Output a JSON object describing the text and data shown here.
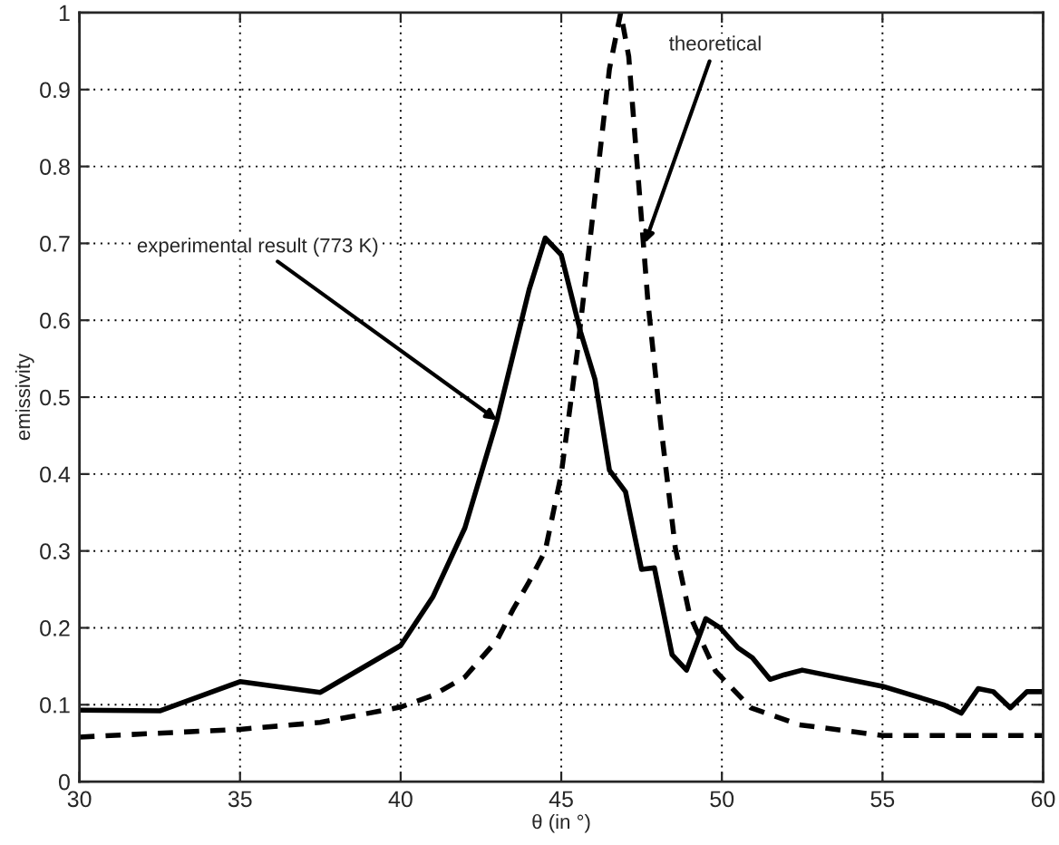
{
  "chart_data": {
    "type": "line",
    "xlabel": "θ (in °)",
    "ylabel": "emissivity",
    "xlim": [
      30,
      60
    ],
    "xticks": [
      30,
      35,
      40,
      45,
      50,
      55,
      60
    ],
    "ylim": [
      0,
      1
    ],
    "yticks": [
      0,
      {
        "value": 0.1,
        "label": "0.1"
      },
      {
        "value": 0.2,
        "label": "0.2"
      },
      {
        "value": 0.3,
        "label": "0.3"
      },
      {
        "value": 0.4,
        "label": "0.4"
      },
      {
        "value": 0.5,
        "label": "0.5"
      },
      {
        "value": 0.6,
        "label": "0.6"
      },
      {
        "value": 0.7,
        "label": "0.7"
      },
      {
        "value": 0.8,
        "label": "0.8"
      },
      {
        "value": 0.9,
        "label": "0.9"
      },
      1
    ],
    "grid": true,
    "legend": false,
    "series": [
      {
        "color": "#000000",
        "line_style": "solid",
        "x": [
          30,
          32.5,
          35,
          37.5,
          40,
          41,
          42,
          43,
          44,
          44.5,
          45,
          45.6,
          46.05,
          46.5,
          47.0,
          47.5,
          47.9,
          48.45,
          48.9,
          49.5,
          49.95,
          50.5,
          50.95,
          51.5,
          51.95,
          52.5,
          55.0,
          56.9,
          57.45,
          57.98,
          58.45,
          58.98,
          59.5,
          60
        ],
        "values": [
          0.093,
          0.092,
          0.13,
          0.116,
          0.177,
          0.24,
          0.33,
          0.47,
          0.64,
          0.707,
          0.685,
          0.585,
          0.523,
          0.405,
          0.377,
          0.276,
          0.278,
          0.165,
          0.145,
          0.212,
          0.2,
          0.174,
          0.161,
          0.133,
          0.139,
          0.145,
          0.124,
          0.1,
          0.089,
          0.121,
          0.117,
          0.096,
          0.117,
          0.117
        ]
      },
      {
        "color": "#000000",
        "line_style": "dashed",
        "x": [
          30,
          35,
          37.5,
          40,
          41,
          42,
          43,
          43.5,
          44,
          44.5,
          45,
          45.5,
          46.0,
          46.5,
          46.85,
          47.1,
          47.4,
          47.7,
          48.1,
          48.55,
          49.0,
          49.8,
          50.9,
          52.4,
          55,
          60
        ],
        "values": [
          0.058,
          0.068,
          0.077,
          0.097,
          0.112,
          0.136,
          0.184,
          0.224,
          0.26,
          0.3,
          0.4,
          0.559,
          0.743,
          0.927,
          1.0,
          0.943,
          0.783,
          0.623,
          0.463,
          0.304,
          0.216,
          0.144,
          0.096,
          0.074,
          0.06,
          0.06
        ]
      }
    ],
    "annotations": [
      {
        "text": "experimental result (773 K)",
        "x": 43,
        "y": 0.47
      },
      {
        "text": "theoretical",
        "x": 47.6,
        "y": 0.7
      }
    ]
  }
}
